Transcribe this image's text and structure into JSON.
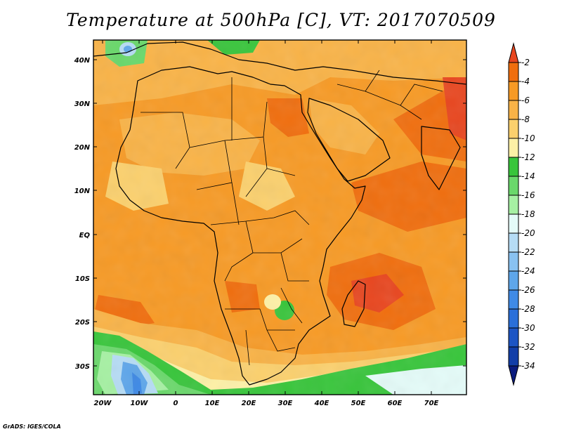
{
  "title": "Temperature at 500hPa [C], VT: 2017070509",
  "credit": "GrADS: IGES/COLA",
  "map": {
    "lat_labels": [
      "40N",
      "30N",
      "20N",
      "10N",
      "EQ",
      "10S",
      "20S",
      "30S"
    ],
    "lon_labels": [
      "20W",
      "10W",
      "0",
      "10E",
      "20E",
      "30E",
      "40E",
      "50E",
      "60E",
      "70E"
    ]
  },
  "colorbar": {
    "labels": [
      "-2",
      "-4",
      "-6",
      "-8",
      "-10",
      "-12",
      "-14",
      "-16",
      "-18",
      "-20",
      "-22",
      "-24",
      "-26",
      "-28",
      "-30",
      "-32",
      "-34"
    ],
    "colors": [
      "#e8461f",
      "#f06e0e",
      "#f79a25",
      "#f9b347",
      "#fbd06d",
      "#fdf0a6",
      "#38c53b",
      "#6ad86b",
      "#a6f0a3",
      "#e4fbf8",
      "#b6dcf5",
      "#89c2f1",
      "#5ea6ea",
      "#3f8ae6",
      "#2a6fd9",
      "#1d55c4",
      "#123ea8",
      "#0b1c7e"
    ]
  }
}
